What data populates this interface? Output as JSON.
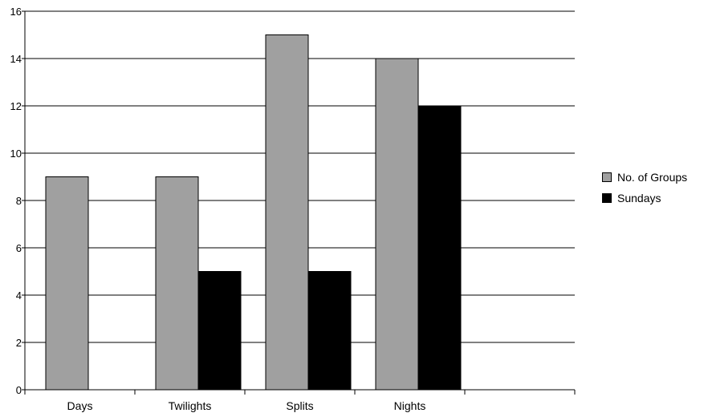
{
  "chart_data": {
    "type": "bar",
    "title": "",
    "xlabel": "",
    "ylabel": "",
    "categories": [
      "Days",
      "Twilights",
      "Splits",
      "Nights"
    ],
    "series": [
      {
        "name": "No. of Groups",
        "values": [
          9,
          9,
          15,
          14
        ],
        "color": "#a0a0a0"
      },
      {
        "name": "Sundays",
        "values": [
          null,
          5,
          5,
          12
        ],
        "color": "#000000"
      }
    ],
    "ylim": [
      0,
      16
    ],
    "yticks": [
      "0",
      "2",
      "4",
      "6",
      "8",
      "10",
      "12",
      "14",
      "16"
    ],
    "grid": true,
    "legend_position": "right"
  }
}
